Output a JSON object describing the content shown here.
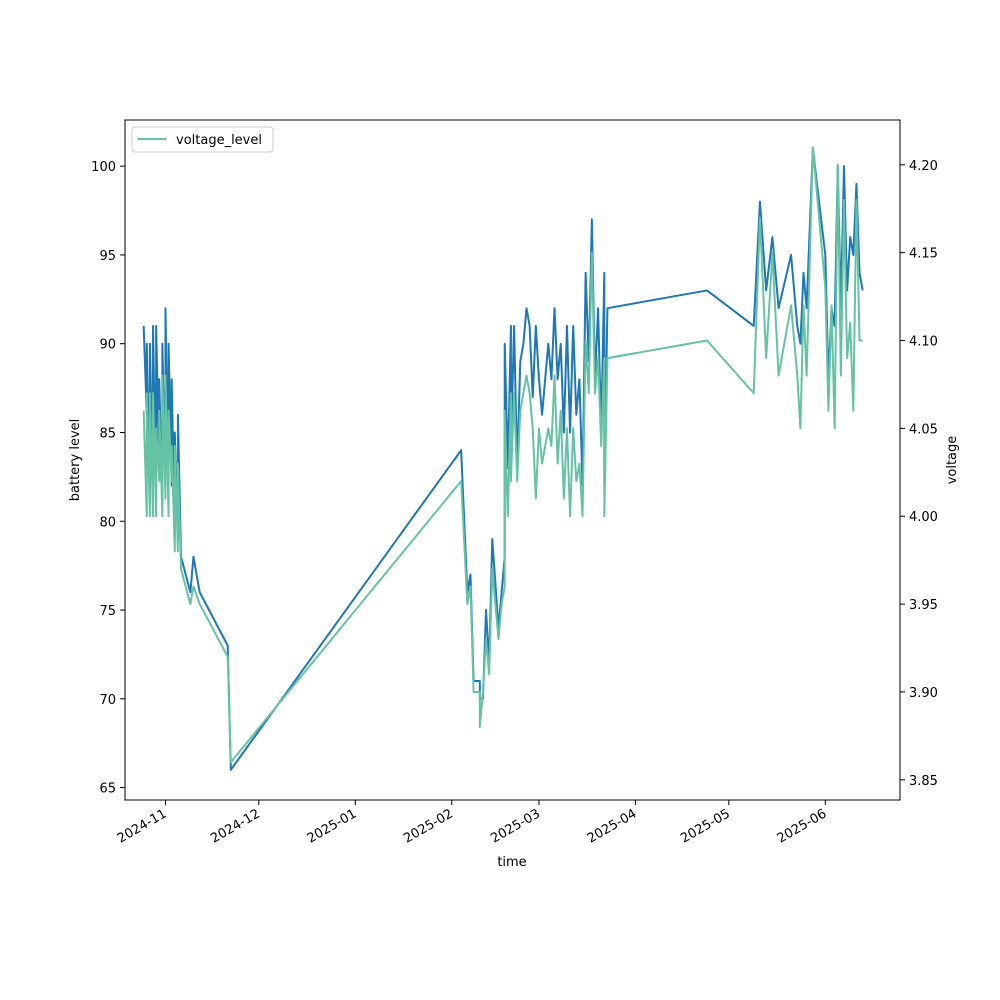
{
  "colors": {
    "battery_line": "#1f77b4",
    "voltage_line": "#66c2a5",
    "axes": "#000000",
    "background": "#ffffff"
  },
  "chart_data": {
    "type": "line",
    "xlabel": "time",
    "ylabel_left": "battery level",
    "ylabel_right": "voltage",
    "x_range": [
      "2024-10-19",
      "2025-06-25"
    ],
    "ylim_left": [
      64.3,
      102.6
    ],
    "ylim_right": [
      3.8385,
      4.2255
    ],
    "y_ticks_left": [
      65,
      70,
      75,
      80,
      85,
      90,
      95,
      100
    ],
    "y_ticks_right": [
      3.85,
      3.9,
      3.95,
      4.0,
      4.05,
      4.1,
      4.15,
      4.2
    ],
    "x_ticks": [
      "2024-11",
      "2024-12",
      "2025-01",
      "2025-02",
      "2025-03",
      "2025-04",
      "2025-05",
      "2025-06"
    ],
    "x_tick_dates": [
      "2024-11-01",
      "2024-12-01",
      "2025-01-01",
      "2025-02-01",
      "2025-03-01",
      "2025-04-01",
      "2025-05-01",
      "2025-06-01"
    ],
    "grid": false,
    "legend": {
      "position": "top-left",
      "entries": [
        {
          "label": "voltage_level",
          "color": "#66c2a5"
        }
      ]
    },
    "series": [
      {
        "axis": "left",
        "color": "#1f77b4",
        "points": [
          [
            "2024-10-25",
            91
          ],
          [
            "2024-10-26",
            86
          ],
          [
            "2024-10-26",
            90
          ],
          [
            "2024-10-27",
            81
          ],
          [
            "2024-10-27",
            90
          ],
          [
            "2024-10-28",
            82
          ],
          [
            "2024-10-28",
            91
          ],
          [
            "2024-10-29",
            81
          ],
          [
            "2024-10-29",
            91
          ],
          [
            "2024-10-30",
            83
          ],
          [
            "2024-10-30",
            88
          ],
          [
            "2024-10-31",
            81
          ],
          [
            "2024-10-31",
            90
          ],
          [
            "2024-11-01",
            82
          ],
          [
            "2024-11-01",
            92
          ],
          [
            "2024-11-02",
            81
          ],
          [
            "2024-11-02",
            90
          ],
          [
            "2024-11-03",
            82
          ],
          [
            "2024-11-03",
            88
          ],
          [
            "2024-11-04",
            79
          ],
          [
            "2024-11-04",
            85
          ],
          [
            "2024-11-05",
            79
          ],
          [
            "2024-11-05",
            86
          ],
          [
            "2024-11-06",
            78
          ],
          [
            "2024-11-06",
            78
          ],
          [
            "2024-11-09",
            76
          ],
          [
            "2024-11-10",
            78
          ],
          [
            "2024-11-12",
            76
          ],
          [
            "2024-11-21",
            73
          ],
          [
            "2024-11-22",
            66
          ],
          [
            "2025-02-04",
            84
          ],
          [
            "2025-02-06",
            76
          ],
          [
            "2025-02-07",
            77
          ],
          [
            "2025-02-08",
            71
          ],
          [
            "2025-02-09",
            71
          ],
          [
            "2025-02-10",
            71
          ],
          [
            "2025-02-10",
            70
          ],
          [
            "2025-02-11",
            70
          ],
          [
            "2025-02-12",
            75
          ],
          [
            "2025-02-13",
            72
          ],
          [
            "2025-02-14",
            79
          ],
          [
            "2025-02-16",
            74
          ],
          [
            "2025-02-17",
            76
          ],
          [
            "2025-02-18",
            78
          ],
          [
            "2025-02-18",
            90
          ],
          [
            "2025-02-19",
            83
          ],
          [
            "2025-02-20",
            91
          ],
          [
            "2025-02-20",
            84
          ],
          [
            "2025-02-21",
            91
          ],
          [
            "2025-02-22",
            83
          ],
          [
            "2025-02-23",
            89
          ],
          [
            "2025-02-24",
            90
          ],
          [
            "2025-02-25",
            92
          ],
          [
            "2025-02-26",
            91
          ],
          [
            "2025-02-27",
            87
          ],
          [
            "2025-02-28",
            91
          ],
          [
            "2025-03-01",
            88
          ],
          [
            "2025-03-02",
            86
          ],
          [
            "2025-03-04",
            90
          ],
          [
            "2025-03-05",
            88
          ],
          [
            "2025-03-06",
            92
          ],
          [
            "2025-03-07",
            88
          ],
          [
            "2025-03-08",
            90
          ],
          [
            "2025-03-09",
            85
          ],
          [
            "2025-03-10",
            91
          ],
          [
            "2025-03-11",
            85
          ],
          [
            "2025-03-12",
            91
          ],
          [
            "2025-03-13",
            86
          ],
          [
            "2025-03-14",
            88
          ],
          [
            "2025-03-15",
            82
          ],
          [
            "2025-03-16",
            94
          ],
          [
            "2025-03-17",
            89
          ],
          [
            "2025-03-18",
            97
          ],
          [
            "2025-03-19",
            88
          ],
          [
            "2025-03-20",
            92
          ],
          [
            "2025-03-21",
            85
          ],
          [
            "2025-03-22",
            94
          ],
          [
            "2025-03-22",
            82
          ],
          [
            "2025-03-23",
            92
          ],
          [
            "2025-04-24",
            93
          ],
          [
            "2025-05-09",
            91
          ],
          [
            "2025-05-11",
            98
          ],
          [
            "2025-05-13",
            93
          ],
          [
            "2025-05-15",
            96
          ],
          [
            "2025-05-17",
            92
          ],
          [
            "2025-05-21",
            95
          ],
          [
            "2025-05-23",
            91
          ],
          [
            "2025-05-24",
            90
          ],
          [
            "2025-05-25",
            94
          ],
          [
            "2025-05-26",
            92
          ],
          [
            "2025-05-28",
            101
          ],
          [
            "2025-06-01",
            95
          ],
          [
            "2025-06-02",
            88
          ],
          [
            "2025-06-03",
            92
          ],
          [
            "2025-06-04",
            91
          ],
          [
            "2025-06-05",
            100
          ],
          [
            "2025-06-06",
            92
          ],
          [
            "2025-06-07",
            100
          ],
          [
            "2025-06-08",
            93
          ],
          [
            "2025-06-09",
            96
          ],
          [
            "2025-06-10",
            95
          ],
          [
            "2025-06-11",
            99
          ],
          [
            "2025-06-12",
            94
          ],
          [
            "2025-06-13",
            93
          ]
        ]
      },
      {
        "axis": "right",
        "color": "#66c2a5",
        "points": [
          [
            "2024-10-25",
            4.06
          ],
          [
            "2024-10-26",
            4.0
          ],
          [
            "2024-10-26",
            4.07
          ],
          [
            "2024-10-27",
            4.0
          ],
          [
            "2024-10-27",
            4.07
          ],
          [
            "2024-10-28",
            4.0
          ],
          [
            "2024-10-28",
            4.07
          ],
          [
            "2024-10-29",
            4.0
          ],
          [
            "2024-10-29",
            4.05
          ],
          [
            "2024-10-30",
            4.02
          ],
          [
            "2024-10-30",
            4.06
          ],
          [
            "2024-10-31",
            4.0
          ],
          [
            "2024-10-31",
            4.08
          ],
          [
            "2024-11-01",
            4.01
          ],
          [
            "2024-11-01",
            4.08
          ],
          [
            "2024-11-02",
            4.0
          ],
          [
            "2024-11-02",
            4.06
          ],
          [
            "2024-11-03",
            4.02
          ],
          [
            "2024-11-03",
            4.04
          ],
          [
            "2024-11-04",
            3.98
          ],
          [
            "2024-11-04",
            4.04
          ],
          [
            "2024-11-05",
            3.98
          ],
          [
            "2024-11-05",
            4.03
          ],
          [
            "2024-11-06",
            3.97
          ],
          [
            "2024-11-06",
            3.97
          ],
          [
            "2024-11-09",
            3.95
          ],
          [
            "2024-11-10",
            3.96
          ],
          [
            "2024-11-12",
            3.95
          ],
          [
            "2024-11-21",
            3.92
          ],
          [
            "2024-11-22",
            3.86
          ],
          [
            "2025-02-04",
            4.02
          ],
          [
            "2025-02-06",
            3.95
          ],
          [
            "2025-02-07",
            3.96
          ],
          [
            "2025-02-08",
            3.9
          ],
          [
            "2025-02-09",
            3.9
          ],
          [
            "2025-02-10",
            3.9
          ],
          [
            "2025-02-10",
            3.88
          ],
          [
            "2025-02-11",
            3.9
          ],
          [
            "2025-02-12",
            3.93
          ],
          [
            "2025-02-13",
            3.91
          ],
          [
            "2025-02-14",
            3.97
          ],
          [
            "2025-02-16",
            3.93
          ],
          [
            "2025-02-17",
            3.95
          ],
          [
            "2025-02-18",
            3.96
          ],
          [
            "2025-02-18",
            4.06
          ],
          [
            "2025-02-19",
            4.0
          ],
          [
            "2025-02-20",
            4.07
          ],
          [
            "2025-02-20",
            4.02
          ],
          [
            "2025-02-21",
            4.07
          ],
          [
            "2025-02-22",
            4.02
          ],
          [
            "2025-02-23",
            4.06
          ],
          [
            "2025-02-24",
            4.07
          ],
          [
            "2025-02-25",
            4.08
          ],
          [
            "2025-02-26",
            4.07
          ],
          [
            "2025-02-27",
            4.05
          ],
          [
            "2025-02-28",
            4.01
          ],
          [
            "2025-03-01",
            4.05
          ],
          [
            "2025-03-02",
            4.03
          ],
          [
            "2025-03-04",
            4.05
          ],
          [
            "2025-03-05",
            4.04
          ],
          [
            "2025-03-06",
            4.08
          ],
          [
            "2025-03-07",
            4.03
          ],
          [
            "2025-03-08",
            4.06
          ],
          [
            "2025-03-09",
            4.01
          ],
          [
            "2025-03-10",
            4.05
          ],
          [
            "2025-03-11",
            4.0
          ],
          [
            "2025-03-12",
            4.05
          ],
          [
            "2025-03-13",
            4.02
          ],
          [
            "2025-03-14",
            4.03
          ],
          [
            "2025-03-15",
            4.0
          ],
          [
            "2025-03-16",
            4.1
          ],
          [
            "2025-03-17",
            4.07
          ],
          [
            "2025-03-18",
            4.15
          ],
          [
            "2025-03-19",
            4.07
          ],
          [
            "2025-03-20",
            4.09
          ],
          [
            "2025-03-21",
            4.04
          ],
          [
            "2025-03-22",
            4.09
          ],
          [
            "2025-03-22",
            4.0
          ],
          [
            "2025-03-23",
            4.09
          ],
          [
            "2025-04-24",
            4.1
          ],
          [
            "2025-05-09",
            4.07
          ],
          [
            "2025-05-11",
            4.17
          ],
          [
            "2025-05-13",
            4.09
          ],
          [
            "2025-05-15",
            4.15
          ],
          [
            "2025-05-17",
            4.08
          ],
          [
            "2025-05-21",
            4.12
          ],
          [
            "2025-05-23",
            4.08
          ],
          [
            "2025-05-24",
            4.05
          ],
          [
            "2025-05-25",
            4.12
          ],
          [
            "2025-05-26",
            4.08
          ],
          [
            "2025-05-28",
            4.21
          ],
          [
            "2025-06-01",
            4.13
          ],
          [
            "2025-06-02",
            4.06
          ],
          [
            "2025-06-03",
            4.12
          ],
          [
            "2025-06-04",
            4.05
          ],
          [
            "2025-06-05",
            4.2
          ],
          [
            "2025-06-06",
            4.08
          ],
          [
            "2025-06-07",
            4.18
          ],
          [
            "2025-06-08",
            4.09
          ],
          [
            "2025-06-09",
            4.11
          ],
          [
            "2025-06-10",
            4.06
          ],
          [
            "2025-06-11",
            4.18
          ],
          [
            "2025-06-12",
            4.1
          ],
          [
            "2025-06-13",
            4.1
          ]
        ]
      }
    ]
  }
}
